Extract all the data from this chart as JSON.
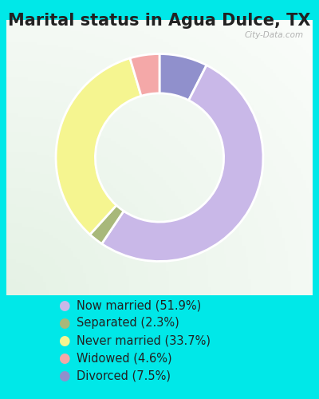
{
  "title": "Marital status in Agua Dulce, TX",
  "slices": [
    51.9,
    2.3,
    33.7,
    4.6,
    7.5
  ],
  "labels": [
    "Now married (51.9%)",
    "Separated (2.3%)",
    "Never married (33.7%)",
    "Widowed (4.6%)",
    "Divorced (7.5%)"
  ],
  "colors": [
    "#c9b8e8",
    "#a8b87a",
    "#f5f590",
    "#f4a8a8",
    "#9090cc"
  ],
  "background_color_outer": "#00e8e8",
  "title_fontsize": 15,
  "legend_fontsize": 10.5,
  "watermark": "City-Data.com",
  "start_angle": 90,
  "donut_width": 0.38
}
